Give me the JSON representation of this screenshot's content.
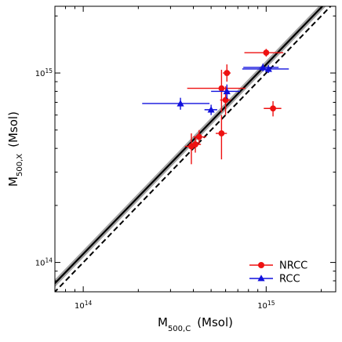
{
  "chart_data": {
    "type": "scatter",
    "x_scale": "log",
    "y_scale": "log",
    "xlim": [
      70000000000000.0,
      2400000000000000.0
    ],
    "ylim": [
      70000000000000.0,
      2250000000000000.0
    ],
    "xlabel": {
      "main": "M",
      "sub": "500,C",
      "unit": "(Msol)"
    },
    "ylabel": {
      "main": "M",
      "sub": "500,X",
      "unit": "(Msol)"
    },
    "x_major_ticks": [
      {
        "value": 100000000000000.0,
        "mantissa": "10",
        "exponent": "14"
      },
      {
        "value": 1000000000000000.0,
        "mantissa": "10",
        "exponent": "15"
      }
    ],
    "y_major_ticks": [
      {
        "value": 100000000000000.0,
        "mantissa": "10",
        "exponent": "14"
      },
      {
        "value": 1000000000000000.0,
        "mantissa": "10",
        "exponent": "15"
      }
    ],
    "grid": false,
    "legend_position": "bottom-right",
    "fit": {
      "slope": 1.0,
      "intercept_dex": 0.045,
      "band_dex": 0.02,
      "color": "#000000",
      "band_color": "#a6a6a6"
    },
    "one_to_one": {
      "slope": 1.0,
      "intercept_dex": 0.0,
      "style": "dashed",
      "color": "#000000"
    },
    "series": [
      {
        "name": "NRCC",
        "marker": "circle",
        "color": "#ee1111",
        "points": [
          {
            "x": 390000000000000.0,
            "y": 410000000000000.0,
            "xerr": [
              30000000000000.0,
              30000000000000.0
            ],
            "yerr": [
              80000000000000.0,
              70000000000000.0
            ]
          },
          {
            "x": 410000000000000.0,
            "y": 420000000000000.0,
            "xerr": [
              30000000000000.0,
              30000000000000.0
            ],
            "yerr": [
              40000000000000.0,
              40000000000000.0
            ]
          },
          {
            "x": 430000000000000.0,
            "y": 460000000000000.0,
            "xerr": [
              30000000000000.0,
              40000000000000.0
            ],
            "yerr": [
              40000000000000.0,
              40000000000000.0
            ]
          },
          {
            "x": 570000000000000.0,
            "y": 480000000000000.0,
            "xerr": [
              40000000000000.0,
              40000000000000.0
            ],
            "yerr": [
              130000000000000.0,
              120000000000000.0
            ]
          },
          {
            "x": 570000000000000.0,
            "y": 830000000000000.0,
            "xerr": [
              200000000000000.0,
              200000000000000.0
            ],
            "yerr": [
              210000000000000.0,
              210000000000000.0
            ]
          },
          {
            "x": 600000000000000.0,
            "y": 720000000000000.0,
            "xerr": [
              40000000000000.0,
              40000000000000.0
            ],
            "yerr": [
              120000000000000.0,
              130000000000000.0
            ]
          },
          {
            "x": 610000000000000.0,
            "y": 1000000000000000.0,
            "xerr": [
              30000000000000.0,
              30000000000000.0
            ],
            "yerr": [
              100000000000000.0,
              110000000000000.0
            ]
          },
          {
            "x": 1000000000000000.0,
            "y": 1280000000000000.0,
            "xerr": [
              240000000000000.0,
              240000000000000.0
            ],
            "yerr": [
              60000000000000.0,
              60000000000000.0
            ]
          },
          {
            "x": 1090000000000000.0,
            "y": 650000000000000.0,
            "xerr": [
              120000000000000.0,
              120000000000000.0
            ],
            "yerr": [
              60000000000000.0,
              60000000000000.0
            ]
          }
        ]
      },
      {
        "name": "RCC",
        "marker": "triangle",
        "color": "#1111dd",
        "points": [
          {
            "x": 340000000000000.0,
            "y": 690000000000000.0,
            "xerr": [
              130000000000000.0,
              150000000000000.0
            ],
            "yerr": [
              50000000000000.0,
              50000000000000.0
            ]
          },
          {
            "x": 500000000000000.0,
            "y": 640000000000000.0,
            "xerr": [
              40000000000000.0,
              40000000000000.0
            ],
            "yerr": [
              40000000000000.0,
              40000000000000.0
            ]
          },
          {
            "x": 610000000000000.0,
            "y": 800000000000000.0,
            "xerr": [
              110000000000000.0,
              110000000000000.0
            ],
            "yerr": [
              70000000000000.0,
              70000000000000.0
            ]
          },
          {
            "x": 960000000000000.0,
            "y": 1070000000000000.0,
            "xerr": [
              210000000000000.0,
              210000000000000.0
            ],
            "yerr": [
              50000000000000.0,
              50000000000000.0
            ]
          },
          {
            "x": 1030000000000000.0,
            "y": 1050000000000000.0,
            "xerr": [
              290000000000000.0,
              300000000000000.0
            ],
            "yerr": [
              50000000000000.0,
              50000000000000.0
            ]
          }
        ]
      }
    ]
  }
}
